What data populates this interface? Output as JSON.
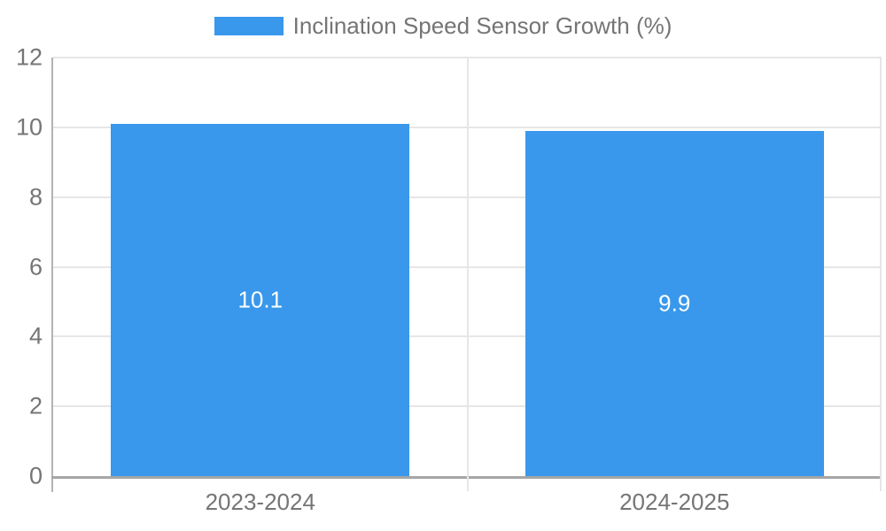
{
  "legend": {
    "label": "Inclination Speed Sensor Growth (%)"
  },
  "colors": {
    "bar": "#3998eb",
    "grid": "#e6e6e6",
    "axis": "#a6a6a6",
    "tick_label": "#757575",
    "data_label": "#ffffff"
  },
  "chart_data": {
    "type": "bar",
    "categories": [
      "2023-2024",
      "2024-2025"
    ],
    "values": [
      10.1,
      9.9
    ],
    "data_labels": [
      "10.1",
      "9.9"
    ],
    "series_name": "Inclination Speed Sensor Growth (%)",
    "title": "",
    "xlabel": "",
    "ylabel": "",
    "ylim": [
      0,
      12
    ],
    "yticks": [
      0,
      2,
      4,
      6,
      8,
      10,
      12
    ],
    "grid": true,
    "legend_position": "top"
  }
}
